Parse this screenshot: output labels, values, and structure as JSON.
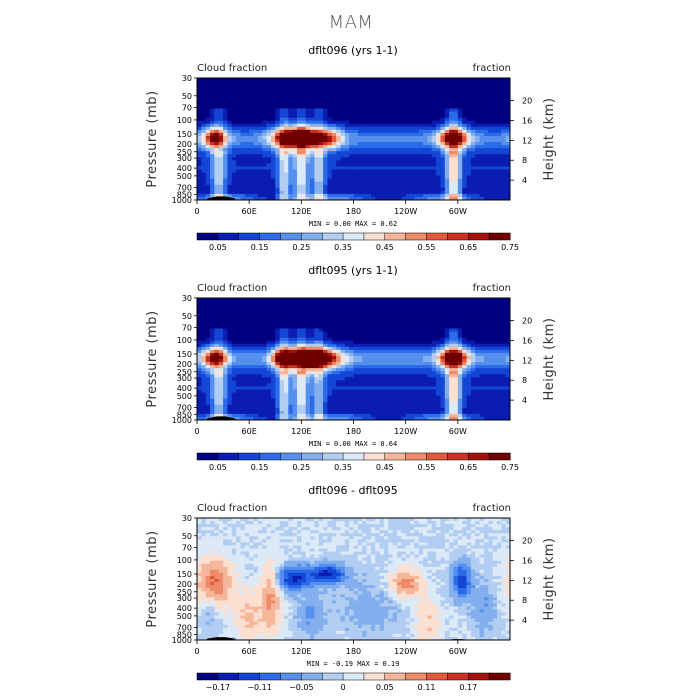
{
  "title": "MAM",
  "colormaps": {
    "fraction": [
      "#000080",
      "#0a1db0",
      "#1446d6",
      "#2b6ae8",
      "#5590ee",
      "#83afee",
      "#b2cdf2",
      "#dce9f7",
      "#fbe0d2",
      "#f5b69a",
      "#ee8a68",
      "#e25a3a",
      "#c93120",
      "#a3110d",
      "#700000"
    ],
    "difference": [
      "#000080",
      "#0a1db0",
      "#1446d6",
      "#2b6ae8",
      "#5590ee",
      "#83afee",
      "#b2cdf2",
      "#dce9f7",
      "#fbe0d2",
      "#f5b69a",
      "#ee8a68",
      "#e25a3a",
      "#c93120",
      "#a3110d",
      "#700000"
    ]
  },
  "chart_data": [
    {
      "type": "heatmap",
      "title": "dflt096 (yrs 1-1)",
      "left_label": "Cloud fraction",
      "right_label": "fraction",
      "ylabel": "Pressure (mb)",
      "y2label": "Height (km)",
      "x_ticks": [
        "0",
        "60E",
        "120E",
        "180",
        "120W",
        "60W"
      ],
      "x_tick_values": [
        0,
        60,
        120,
        180,
        240,
        300
      ],
      "xlim": [
        0,
        360
      ],
      "y_ticks": [
        "30",
        "50",
        "70",
        "100",
        "150",
        "200",
        "250",
        "300",
        "400",
        "500",
        "700",
        "850",
        "1000"
      ],
      "y_tick_values": [
        30,
        50,
        70,
        100,
        150,
        200,
        250,
        300,
        400,
        500,
        700,
        850,
        1000
      ],
      "ylim": [
        1000,
        30
      ],
      "y_scale": "log",
      "height_ticks": [
        "20",
        "16",
        "12",
        "8",
        "4"
      ],
      "height_tick_values": [
        20,
        16,
        12,
        8,
        4
      ],
      "minmax_text": "MIN =    0.00   MAX =    0.62",
      "min": 0.0,
      "max": 0.62,
      "colorbar_labels": [
        "0.05",
        "0.15",
        "0.25",
        "0.35",
        "0.45",
        "0.55",
        "0.65",
        "0.75"
      ],
      "colorbar_levels": [
        0.05,
        0.1,
        0.15,
        0.2,
        0.25,
        0.3,
        0.35,
        0.4,
        0.45,
        0.5,
        0.55,
        0.6,
        0.65,
        0.7,
        0.75
      ],
      "colormap": "fraction",
      "upper_layer": {
        "p_bot": 250,
        "p_top": 110,
        "center_p": 170,
        "peaks": [
          {
            "lon": 20,
            "amp": 0.5,
            "w": 10
          },
          {
            "lon": 105,
            "amp": 0.6,
            "w": 14
          },
          {
            "lon": 125,
            "amp": 0.55,
            "w": 10
          },
          {
            "lon": 150,
            "amp": 0.45,
            "w": 12
          },
          {
            "lon": 295,
            "amp": 0.6,
            "w": 12
          }
        ],
        "base": 0.18
      },
      "columns": [
        {
          "lon": 25,
          "amp": 0.25,
          "w": 6
        },
        {
          "lon": 100,
          "amp": 0.28,
          "w": 5
        },
        {
          "lon": 120,
          "amp": 0.3,
          "w": 6
        },
        {
          "lon": 140,
          "amp": 0.25,
          "w": 5
        },
        {
          "lon": 295,
          "amp": 0.35,
          "w": 6
        }
      ],
      "lower_layer": {
        "p_center": 930,
        "amp": 0.22
      },
      "topography": [
        {
          "lon0": 10,
          "lon1": 45,
          "p_top": 900
        }
      ]
    },
    {
      "type": "heatmap",
      "title": "dflt095 (yrs 1-1)",
      "left_label": "Cloud fraction",
      "right_label": "fraction",
      "ylabel": "Pressure (mb)",
      "y2label": "Height (km)",
      "x_ticks": [
        "0",
        "60E",
        "120E",
        "180",
        "120W",
        "60W"
      ],
      "x_tick_values": [
        0,
        60,
        120,
        180,
        240,
        300
      ],
      "xlim": [
        0,
        360
      ],
      "y_ticks": [
        "30",
        "50",
        "70",
        "100",
        "150",
        "200",
        "250",
        "300",
        "400",
        "500",
        "700",
        "850",
        "1000"
      ],
      "y_tick_values": [
        30,
        50,
        70,
        100,
        150,
        200,
        250,
        300,
        400,
        500,
        700,
        850,
        1000
      ],
      "ylim": [
        1000,
        30
      ],
      "y_scale": "log",
      "height_ticks": [
        "20",
        "16",
        "12",
        "8",
        "4"
      ],
      "height_tick_values": [
        20,
        16,
        12,
        8,
        4
      ],
      "minmax_text": "MIN =    0.00   MAX =    0.64",
      "min": 0.0,
      "max": 0.64,
      "colorbar_labels": [
        "0.05",
        "0.15",
        "0.25",
        "0.35",
        "0.45",
        "0.55",
        "0.65",
        "0.75"
      ],
      "colorbar_levels": [
        0.05,
        0.1,
        0.15,
        0.2,
        0.25,
        0.3,
        0.35,
        0.4,
        0.45,
        0.5,
        0.55,
        0.6,
        0.65,
        0.7,
        0.75
      ],
      "colormap": "fraction",
      "upper_layer": {
        "p_bot": 250,
        "p_top": 110,
        "center_p": 170,
        "peaks": [
          {
            "lon": 20,
            "amp": 0.5,
            "w": 10
          },
          {
            "lon": 100,
            "amp": 0.6,
            "w": 10
          },
          {
            "lon": 125,
            "amp": 0.58,
            "w": 12
          },
          {
            "lon": 145,
            "amp": 0.55,
            "w": 16
          },
          {
            "lon": 295,
            "amp": 0.62,
            "w": 12
          }
        ],
        "base": 0.2
      },
      "columns": [
        {
          "lon": 25,
          "amp": 0.25,
          "w": 6
        },
        {
          "lon": 100,
          "amp": 0.28,
          "w": 5
        },
        {
          "lon": 120,
          "amp": 0.3,
          "w": 6
        },
        {
          "lon": 140,
          "amp": 0.22,
          "w": 5
        },
        {
          "lon": 295,
          "amp": 0.35,
          "w": 6
        }
      ],
      "lower_layer": {
        "p_center": 930,
        "amp": 0.22
      },
      "topography": [
        {
          "lon0": 10,
          "lon1": 45,
          "p_top": 900
        }
      ]
    },
    {
      "type": "heatmap",
      "title": "dflt096 - dflt095",
      "left_label": "Cloud fraction",
      "right_label": "fraction",
      "ylabel": "Pressure (mb)",
      "y2label": "Height (km)",
      "x_ticks": [
        "0",
        "60E",
        "120E",
        "180",
        "120W",
        "60W"
      ],
      "x_tick_values": [
        0,
        60,
        120,
        180,
        240,
        300
      ],
      "xlim": [
        0,
        360
      ],
      "y_ticks": [
        "30",
        "50",
        "70",
        "100",
        "150",
        "200",
        "250",
        "300",
        "400",
        "500",
        "700",
        "850",
        "1000"
      ],
      "y_tick_values": [
        30,
        50,
        70,
        100,
        150,
        200,
        250,
        300,
        400,
        500,
        700,
        850,
        1000
      ],
      "ylim": [
        1000,
        30
      ],
      "y_scale": "log",
      "height_ticks": [
        "20",
        "16",
        "12",
        "8",
        "4"
      ],
      "height_tick_values": [
        20,
        16,
        12,
        8,
        4
      ],
      "minmax_text": "MIN =   -0.19   MAX =    0.19",
      "min": -0.19,
      "max": 0.19,
      "colorbar_labels": [
        "-0.17",
        "-0.11",
        "-0.05",
        "0",
        "0.05",
        "0.11",
        "0.17"
      ],
      "colorbar_levels": [
        -0.2,
        -0.17,
        -0.14,
        -0.11,
        -0.08,
        -0.05,
        -0.02,
        0,
        0.02,
        0.05,
        0.08,
        0.11,
        0.14,
        0.17,
        0.2
      ],
      "colormap": "difference",
      "diff_features": [
        {
          "lon": 20,
          "p": 200,
          "amp": 0.12,
          "wlon": 14,
          "wp": 0.5
        },
        {
          "lon": 15,
          "p": 400,
          "amp": -0.05,
          "wlon": 8,
          "wp": 0.4
        },
        {
          "lon": 60,
          "p": 500,
          "amp": 0.06,
          "wlon": 10,
          "wp": 0.5
        },
        {
          "lon": 85,
          "p": 300,
          "amp": 0.09,
          "wlon": 8,
          "wp": 0.7
        },
        {
          "lon": 110,
          "p": 170,
          "amp": -0.14,
          "wlon": 14,
          "wp": 0.25
        },
        {
          "lon": 150,
          "p": 150,
          "amp": -0.15,
          "wlon": 15,
          "wp": 0.2
        },
        {
          "lon": 130,
          "p": 500,
          "amp": -0.06,
          "wlon": 10,
          "wp": 0.4
        },
        {
          "lon": 240,
          "p": 200,
          "amp": 0.1,
          "wlon": 12,
          "wp": 0.3
        },
        {
          "lon": 265,
          "p": 600,
          "amp": 0.05,
          "wlon": 10,
          "wp": 0.5
        },
        {
          "lon": 305,
          "p": 180,
          "amp": -0.13,
          "wlon": 8,
          "wp": 0.35
        },
        {
          "lon": 330,
          "p": 400,
          "amp": -0.05,
          "wlon": 10,
          "wp": 0.5
        },
        {
          "lon": 200,
          "p": 400,
          "amp": -0.03,
          "wlon": 30,
          "wp": 0.6
        }
      ],
      "topography": [
        {
          "lon0": 10,
          "lon1": 45,
          "p_top": 920
        },
        {
          "lon0": 290,
          "lon1": 310,
          "p_top": 975
        }
      ]
    }
  ]
}
